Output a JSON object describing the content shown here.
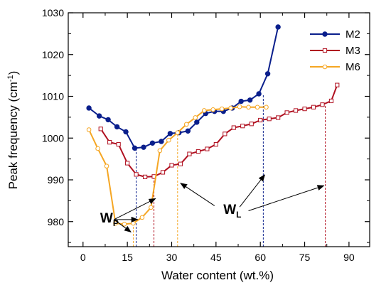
{
  "chart_data": {
    "type": "line",
    "title": "",
    "xlabel": "Water content (wt.%)",
    "ylabel_main": "Peak frequency (cm",
    "ylabel_sup": "-1",
    "ylabel_close": ")",
    "xlim": [
      -5,
      97
    ],
    "ylim": [
      974,
      1030
    ],
    "xticks": [
      0,
      15,
      30,
      45,
      60,
      75,
      90
    ],
    "yticks": [
      980,
      990,
      1000,
      1010,
      1020,
      1030
    ],
    "grid": false,
    "legend_position": "top-right",
    "series": [
      {
        "name": "M2",
        "color": "#0a1f8c",
        "marker": "filled-circle",
        "x": [
          2,
          5.5,
          8.5,
          11.5,
          14.5,
          17.5,
          20.5,
          23.5,
          26.5,
          29.5,
          32.5,
          35.5,
          38.5,
          41.5,
          44.5,
          47.5,
          50.5,
          53.5,
          56.5,
          59.5,
          62.5,
          66
        ],
        "values": [
          1007.2,
          1005.3,
          1004.4,
          1002.7,
          1001.5,
          997.6,
          997.8,
          998.8,
          999.2,
          1001.1,
          1001.3,
          1001.7,
          1003.8,
          1005.9,
          1006.4,
          1006.4,
          1007.2,
          1008.8,
          1009.1,
          1010.6,
          1015.4,
          1026.6
        ]
      },
      {
        "name": "M3",
        "color": "#b01020",
        "marker": "open-square",
        "x": [
          6,
          9,
          12,
          15,
          18,
          21,
          24,
          27,
          30,
          33,
          36,
          39,
          42,
          45,
          48,
          51,
          54,
          57,
          60,
          63,
          66,
          69,
          72,
          75,
          78,
          81,
          84,
          86
        ],
        "values": [
          1002.2,
          999.0,
          998.5,
          994.0,
          991.3,
          990.7,
          990.8,
          991.8,
          993.5,
          993.8,
          996.2,
          996.8,
          997.4,
          998.5,
          1001.0,
          1002.5,
          1002.9,
          1003.4,
          1004.3,
          1004.6,
          1004.9,
          1006.1,
          1006.6,
          1007.0,
          1007.4,
          1008.0,
          1008.9,
          1012.7
        ]
      },
      {
        "name": "M6",
        "color": "#f5a623",
        "marker": "open-circle",
        "x": [
          2,
          5,
          8,
          11,
          14,
          17,
          20,
          23,
          26,
          29,
          32,
          35,
          38,
          41,
          44,
          47,
          50,
          53,
          56,
          59,
          62
        ],
        "values": [
          1002,
          997.5,
          993.3,
          979.6,
          979.4,
          979.6,
          981.0,
          983.4,
          997.0,
          999.5,
          1001.3,
          1003.3,
          1004.9,
          1006.6,
          1006.8,
          1007.0,
          1007.2,
          1007.5,
          1007.4,
          1007.4,
          1007.4
        ]
      }
    ],
    "dashed_lines": [
      {
        "color": "#0a1f8c",
        "x": 18,
        "y": 997.6
      },
      {
        "color": "#b01020",
        "x": 24,
        "y": 990.8
      },
      {
        "color": "#f5a623",
        "x": 17,
        "y": 979.6
      },
      {
        "color": "#f5a623",
        "x": 32,
        "y": 1001.3
      },
      {
        "color": "#0a1f8c",
        "x": 61,
        "y": 1010.6
      },
      {
        "color": "#b01020",
        "x": 82,
        "y": 1008.0
      }
    ],
    "annotations": {
      "wp": {
        "main": "W",
        "sub": "P",
        "x": 5.8,
        "y": 979.8
      },
      "wl": {
        "main": "W",
        "sub": "L",
        "x": 47.5,
        "y": 981.8
      },
      "wp_arrows": [
        {
          "fx": 10.5,
          "fy": 980.5,
          "tx": 24.5,
          "ty": 985.5
        },
        {
          "fx": 10.5,
          "fy": 980.5,
          "tx": 18.5,
          "ty": 980.5
        },
        {
          "fx": 10.5,
          "fy": 980.5,
          "tx": 16.2,
          "ty": 977.5
        }
      ],
      "wl_arrows": [
        {
          "fx": 44.5,
          "fy": 983.8,
          "tx": 33,
          "ty": 989.2
        },
        {
          "fx": 53,
          "fy": 983.5,
          "tx": 61.5,
          "ty": 991.2
        },
        {
          "fx": 56,
          "fy": 982.6,
          "tx": 81.5,
          "ty": 988.6
        }
      ]
    }
  }
}
